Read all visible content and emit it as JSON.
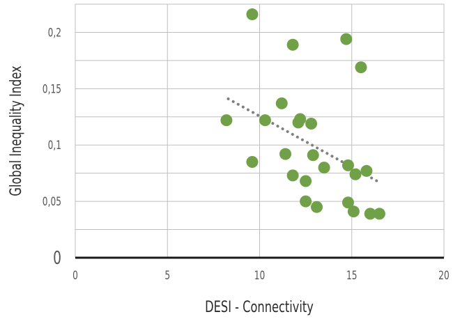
{
  "chart_data": {
    "type": "scatter",
    "xlabel": "DESI - Connectivity",
    "ylabel": "Global Inequality Index",
    "xlim": [
      0,
      20
    ],
    "ylim": [
      0,
      0.225
    ],
    "x_ticks": [
      {
        "value": 0,
        "label": "0"
      },
      {
        "value": 5,
        "label": "5"
      },
      {
        "value": 10,
        "label": "10"
      },
      {
        "value": 15,
        "label": "15"
      },
      {
        "value": 20,
        "label": "20"
      }
    ],
    "y_ticks": [
      {
        "value": 0,
        "label": "0"
      },
      {
        "value": 0.05,
        "label": "0,05"
      },
      {
        "value": 0.1,
        "label": "0,1"
      },
      {
        "value": 0.15,
        "label": "0,15"
      },
      {
        "value": 0.2,
        "label": "0,2"
      }
    ],
    "grid": true,
    "marker_color": "#70a048",
    "trendline": {
      "style": "dotted",
      "color": "#7f7f7f",
      "x": [
        8.3,
        16.6
      ],
      "y": [
        0.141,
        0.066
      ]
    },
    "points": [
      {
        "x": 9.6,
        "y": 0.216
      },
      {
        "x": 11.8,
        "y": 0.189
      },
      {
        "x": 14.7,
        "y": 0.194
      },
      {
        "x": 15.5,
        "y": 0.169
      },
      {
        "x": 8.2,
        "y": 0.122
      },
      {
        "x": 10.3,
        "y": 0.122
      },
      {
        "x": 11.2,
        "y": 0.137
      },
      {
        "x": 12.1,
        "y": 0.12
      },
      {
        "x": 12.2,
        "y": 0.123
      },
      {
        "x": 12.8,
        "y": 0.119
      },
      {
        "x": 9.6,
        "y": 0.085
      },
      {
        "x": 11.4,
        "y": 0.092
      },
      {
        "x": 11.8,
        "y": 0.073
      },
      {
        "x": 12.5,
        "y": 0.068
      },
      {
        "x": 12.9,
        "y": 0.091
      },
      {
        "x": 13.5,
        "y": 0.08
      },
      {
        "x": 14.8,
        "y": 0.082
      },
      {
        "x": 15.2,
        "y": 0.074
      },
      {
        "x": 15.8,
        "y": 0.077
      },
      {
        "x": 12.5,
        "y": 0.05
      },
      {
        "x": 13.1,
        "y": 0.045
      },
      {
        "x": 14.8,
        "y": 0.049
      },
      {
        "x": 15.1,
        "y": 0.041
      },
      {
        "x": 16.0,
        "y": 0.039
      },
      {
        "x": 16.5,
        "y": 0.039
      }
    ]
  }
}
